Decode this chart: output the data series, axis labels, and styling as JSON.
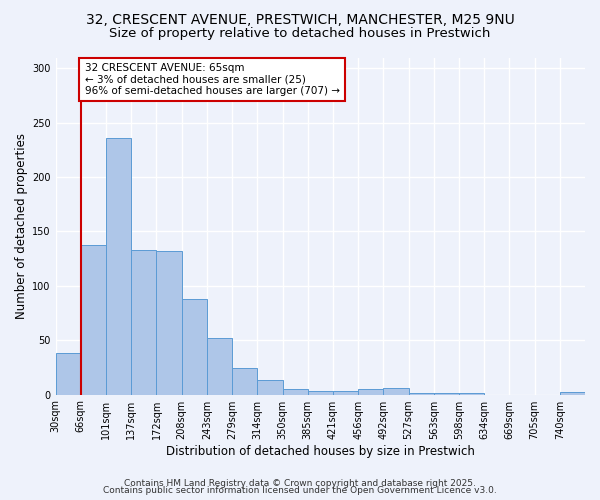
{
  "title_line1": "32, CRESCENT AVENUE, PRESTWICH, MANCHESTER, M25 9NU",
  "title_line2": "Size of property relative to detached houses in Prestwich",
  "xlabel": "Distribution of detached houses by size in Prestwich",
  "ylabel": "Number of detached properties",
  "bins": [
    "30sqm",
    "66sqm",
    "101sqm",
    "137sqm",
    "172sqm",
    "208sqm",
    "243sqm",
    "279sqm",
    "314sqm",
    "350sqm",
    "385sqm",
    "421sqm",
    "456sqm",
    "492sqm",
    "527sqm",
    "563sqm",
    "598sqm",
    "634sqm",
    "669sqm",
    "705sqm",
    "740sqm"
  ],
  "values": [
    38,
    138,
    236,
    133,
    132,
    88,
    52,
    24,
    13,
    5,
    3,
    3,
    5,
    6,
    1,
    1,
    1,
    0,
    0,
    0,
    2
  ],
  "bar_color": "#aec6e8",
  "bar_edge_color": "#5b9bd5",
  "red_line_x": 1,
  "annotation_line1": "32 CRESCENT AVENUE: 65sqm",
  "annotation_line2": "← 3% of detached houses are smaller (25)",
  "annotation_line3": "96% of semi-detached houses are larger (707) →",
  "annotation_box_color": "#ffffff",
  "annotation_box_edge": "#cc0000",
  "vline_color": "#cc0000",
  "ylim": [
    0,
    310
  ],
  "yticks": [
    0,
    50,
    100,
    150,
    200,
    250,
    300
  ],
  "footer_line1": "Contains HM Land Registry data © Crown copyright and database right 2025.",
  "footer_line2": "Contains public sector information licensed under the Open Government Licence v3.0.",
  "bg_color": "#eef2fb",
  "grid_color": "#ffffff",
  "title_fontsize": 10,
  "subtitle_fontsize": 9.5,
  "axis_fontsize": 8.5,
  "tick_fontsize": 7,
  "footer_fontsize": 6.5,
  "annotation_fontsize": 7.5
}
